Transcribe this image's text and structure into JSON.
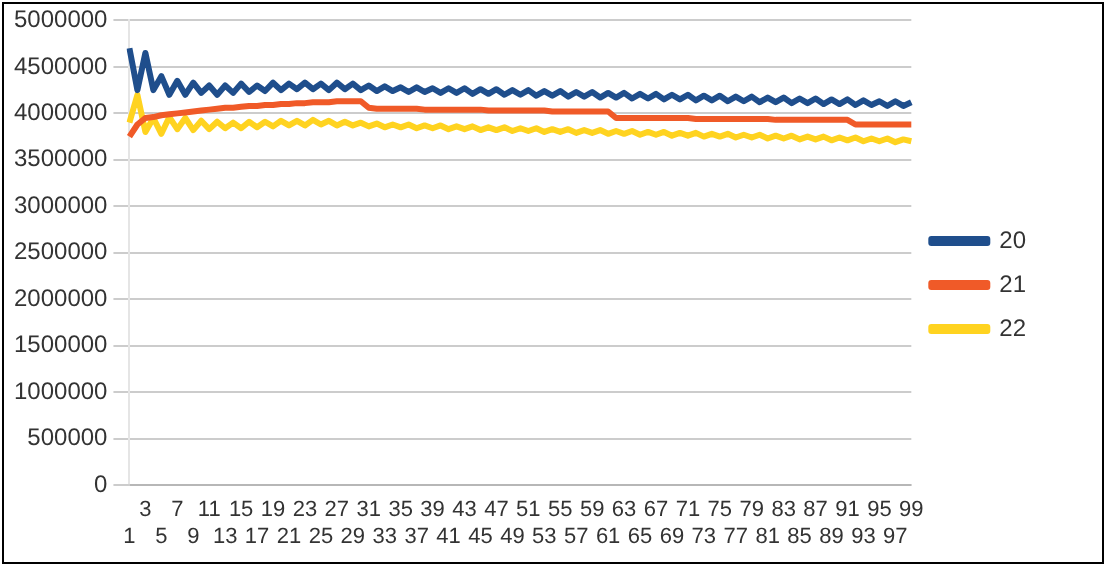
{
  "chart_data": {
    "type": "line",
    "categories": [
      "1",
      null,
      "3",
      null,
      "5",
      null,
      "7",
      null,
      "9",
      null,
      "11",
      null,
      "13",
      null,
      "15",
      null,
      "17",
      null,
      "19",
      null,
      "21",
      null,
      "23",
      null,
      "25",
      null,
      "27",
      null,
      "29",
      null,
      "31",
      null,
      "33",
      null,
      "35",
      null,
      "37",
      null,
      "39",
      null,
      "41",
      null,
      "43",
      null,
      "45",
      null,
      "47",
      null,
      "49",
      null,
      "51",
      null,
      "53",
      null,
      "55",
      null,
      "57",
      null,
      "59",
      null,
      "61",
      null,
      "63",
      null,
      "65",
      null,
      "67",
      null,
      "69",
      null,
      "71",
      null,
      "73",
      null,
      "75",
      null,
      "77",
      null,
      "79",
      null,
      "81",
      null,
      "83",
      null,
      "85",
      null,
      "87",
      null,
      "89",
      null,
      "91",
      null,
      "93",
      null,
      "95",
      null,
      "97",
      null,
      "99"
    ],
    "series": [
      {
        "name": "20",
        "color": "#1f4e8c",
        "values": [
          4700000,
          4250000,
          4650000,
          4250000,
          4400000,
          4200000,
          4350000,
          4200000,
          4330000,
          4220000,
          4300000,
          4200000,
          4300000,
          4220000,
          4320000,
          4230000,
          4300000,
          4240000,
          4330000,
          4250000,
          4320000,
          4260000,
          4330000,
          4260000,
          4320000,
          4250000,
          4330000,
          4260000,
          4320000,
          4250000,
          4300000,
          4240000,
          4290000,
          4240000,
          4280000,
          4230000,
          4280000,
          4230000,
          4270000,
          4220000,
          4270000,
          4220000,
          4270000,
          4210000,
          4260000,
          4210000,
          4260000,
          4200000,
          4250000,
          4200000,
          4250000,
          4190000,
          4240000,
          4190000,
          4240000,
          4180000,
          4230000,
          4180000,
          4230000,
          4170000,
          4220000,
          4170000,
          4220000,
          4160000,
          4210000,
          4160000,
          4210000,
          4150000,
          4200000,
          4150000,
          4200000,
          4140000,
          4190000,
          4140000,
          4190000,
          4130000,
          4180000,
          4130000,
          4180000,
          4120000,
          4170000,
          4120000,
          4170000,
          4110000,
          4160000,
          4110000,
          4160000,
          4100000,
          4150000,
          4100000,
          4150000,
          4090000,
          4140000,
          4090000,
          4130000,
          4080000,
          4130000,
          4080000,
          4120000
        ]
      },
      {
        "name": "21",
        "color": "#f05a28",
        "values": [
          3750000,
          3880000,
          3950000,
          3960000,
          3980000,
          3990000,
          4000000,
          4010000,
          4020000,
          4030000,
          4040000,
          4050000,
          4060000,
          4060000,
          4070000,
          4080000,
          4080000,
          4090000,
          4090000,
          4100000,
          4100000,
          4110000,
          4110000,
          4120000,
          4120000,
          4120000,
          4130000,
          4130000,
          4130000,
          4130000,
          4060000,
          4050000,
          4050000,
          4050000,
          4050000,
          4050000,
          4050000,
          4040000,
          4040000,
          4040000,
          4040000,
          4040000,
          4040000,
          4040000,
          4040000,
          4030000,
          4030000,
          4030000,
          4030000,
          4030000,
          4030000,
          4030000,
          4030000,
          4020000,
          4020000,
          4020000,
          4020000,
          4020000,
          4020000,
          4020000,
          4020000,
          3950000,
          3950000,
          3950000,
          3950000,
          3950000,
          3950000,
          3950000,
          3950000,
          3950000,
          3950000,
          3940000,
          3940000,
          3940000,
          3940000,
          3940000,
          3940000,
          3940000,
          3940000,
          3940000,
          3940000,
          3930000,
          3930000,
          3930000,
          3930000,
          3930000,
          3930000,
          3930000,
          3930000,
          3930000,
          3930000,
          3880000,
          3880000,
          3880000,
          3880000,
          3880000,
          3880000,
          3880000,
          3880000
        ]
      },
      {
        "name": "22",
        "color": "#ffd320",
        "values": [
          3900000,
          4200000,
          3800000,
          3950000,
          3780000,
          3960000,
          3830000,
          3950000,
          3820000,
          3920000,
          3830000,
          3910000,
          3840000,
          3900000,
          3840000,
          3910000,
          3850000,
          3910000,
          3860000,
          3920000,
          3870000,
          3920000,
          3870000,
          3930000,
          3880000,
          3920000,
          3870000,
          3910000,
          3870000,
          3900000,
          3860000,
          3890000,
          3850000,
          3880000,
          3850000,
          3880000,
          3840000,
          3870000,
          3840000,
          3870000,
          3830000,
          3860000,
          3830000,
          3860000,
          3820000,
          3850000,
          3820000,
          3850000,
          3810000,
          3840000,
          3810000,
          3840000,
          3800000,
          3830000,
          3800000,
          3830000,
          3790000,
          3820000,
          3790000,
          3820000,
          3780000,
          3810000,
          3780000,
          3810000,
          3770000,
          3800000,
          3770000,
          3800000,
          3760000,
          3790000,
          3760000,
          3790000,
          3750000,
          3780000,
          3750000,
          3780000,
          3740000,
          3770000,
          3740000,
          3770000,
          3730000,
          3760000,
          3730000,
          3760000,
          3720000,
          3750000,
          3720000,
          3750000,
          3710000,
          3740000,
          3710000,
          3740000,
          3700000,
          3730000,
          3700000,
          3730000,
          3690000,
          3720000,
          3700000
        ]
      }
    ],
    "ylim": [
      0,
      5000000
    ],
    "yticks": [
      0,
      500000,
      1000000,
      1500000,
      2000000,
      2500000,
      3000000,
      3500000,
      4000000,
      4500000,
      5000000
    ],
    "grid": "y",
    "legend": "right",
    "marker": "none",
    "line_style": "solid"
  }
}
